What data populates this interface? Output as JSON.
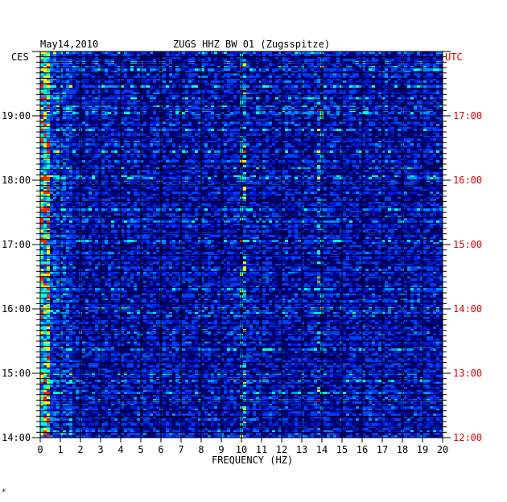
{
  "chart_data": {
    "type": "heatmap",
    "date_label": "May14,2010",
    "title": "ZUGS HHZ BW 01 (Zugsspitze)",
    "left_axis_label": "CES",
    "right_axis_label": "UTC",
    "xlabel": "FREQUENCY (HZ)",
    "x_ticks": [
      "0",
      "1",
      "2",
      "3",
      "4",
      "5",
      "6",
      "7",
      "8",
      "9",
      "10",
      "11",
      "12",
      "13",
      "14",
      "15",
      "16",
      "17",
      "18",
      "19",
      "20"
    ],
    "xlim": [
      0,
      20
    ],
    "left_time_ticks": [
      "19:00",
      "18:00",
      "17:00",
      "16:00",
      "15:00",
      "14:00"
    ],
    "right_time_ticks": [
      "17:00",
      "16:00",
      "15:00",
      "14:00",
      "13:00",
      "12:00"
    ],
    "time_range_local": [
      "14:00",
      "20:00"
    ],
    "grid": true,
    "colors": {
      "background": "#00007a",
      "gridline": "#000000",
      "left_axis_text": "#000000",
      "right_axis_text": "#dd0000",
      "hot": "#ff2200",
      "warm": "#ffee00",
      "cool": "#00ffe0"
    },
    "features": [
      {
        "freq_hz": 0.3,
        "note": "strong low-frequency band"
      },
      {
        "freq_hz": 10,
        "note": "narrow band activity"
      },
      {
        "freq_hz": 13.8,
        "note": "narrow band activity"
      }
    ]
  },
  "footer_mark": "*"
}
